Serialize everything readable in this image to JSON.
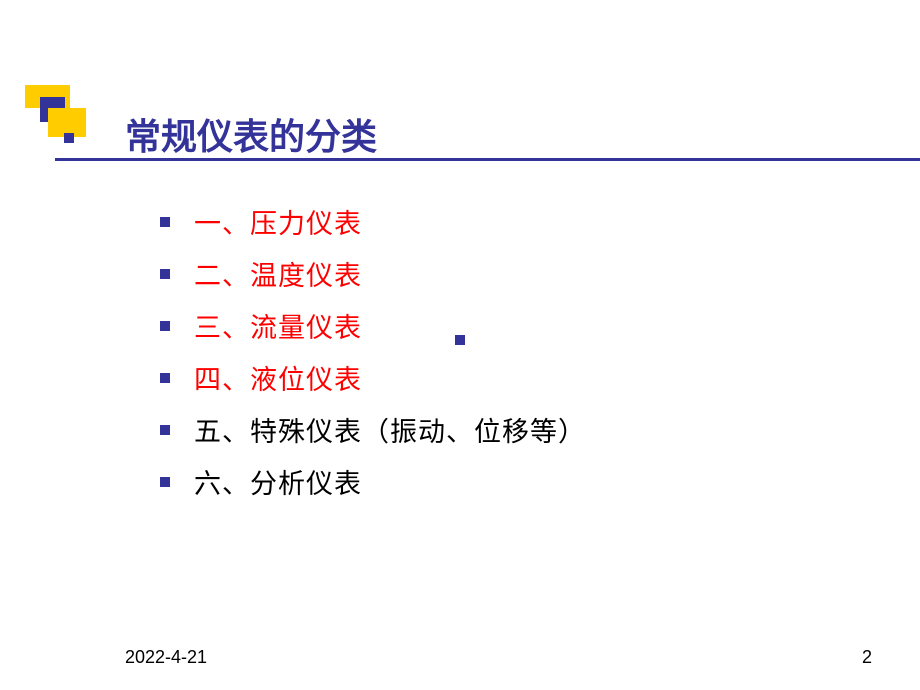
{
  "title": "常规仪表的分类",
  "items": [
    {
      "text": "一、压力仪表",
      "color": "red"
    },
    {
      "text": "二、温度仪表",
      "color": "red"
    },
    {
      "text": "三、流量仪表",
      "color": "red"
    },
    {
      "text": "四、液位仪表",
      "color": "red"
    },
    {
      "text": "五、特殊仪表（振动、位移等）",
      "color": "black"
    },
    {
      "text": "六、分析仪表",
      "color": "black"
    }
  ],
  "footer": {
    "date": "2022-4-21",
    "page": "2"
  },
  "colors": {
    "title_color": "#333399",
    "accent_yellow": "#ffcc00",
    "accent_blue": "#333399",
    "red_text": "#ff0000",
    "black_text": "#000000",
    "background": "#ffffff"
  },
  "typography": {
    "title_fontsize": 36,
    "item_fontsize": 27,
    "footer_fontsize": 18
  }
}
